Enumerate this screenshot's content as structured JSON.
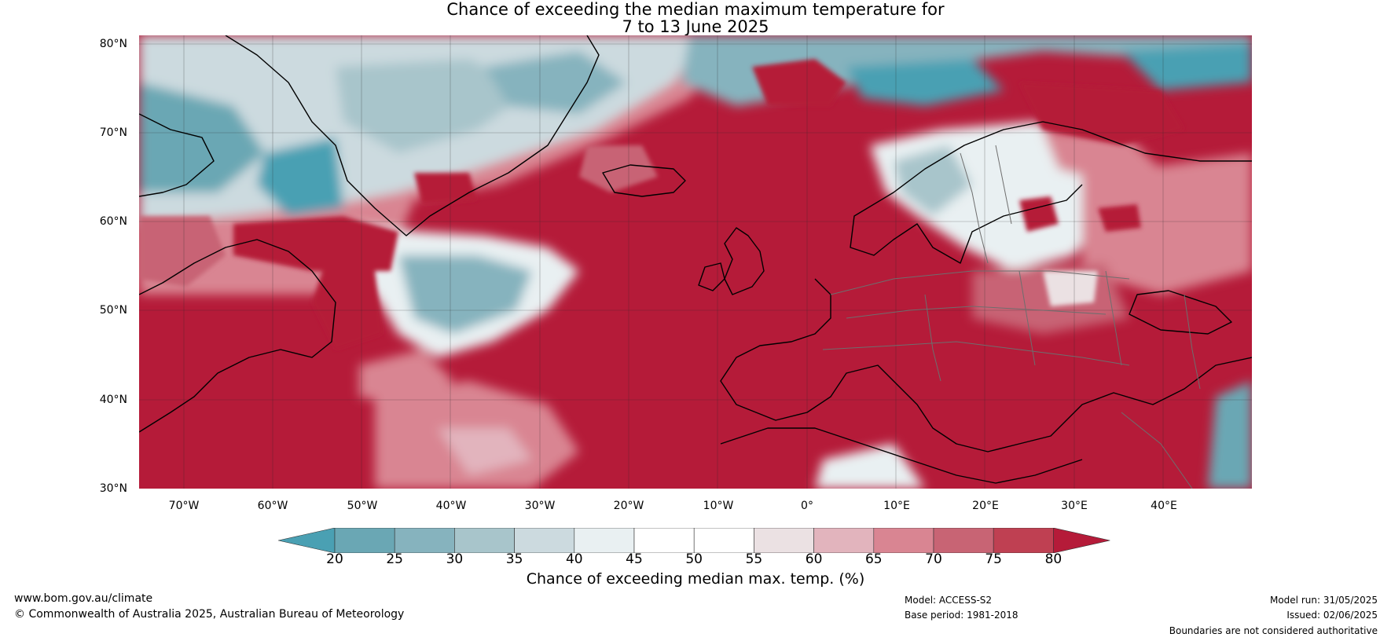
{
  "title": {
    "line1": "Chance of exceeding the median maximum temperature for",
    "line2": "7 to 13 June 2025"
  },
  "map": {
    "latitude_labels": [
      "80°N",
      "70°N",
      "60°N",
      "50°N",
      "40°N",
      "30°N"
    ],
    "longitude_labels": [
      "70°W",
      "60°W",
      "50°W",
      "40°W",
      "30°W",
      "20°W",
      "10°W",
      "0°",
      "10°E",
      "20°E",
      "30°E",
      "40°E"
    ],
    "extent": {
      "lon": [
        -75,
        50
      ],
      "lat": [
        30,
        81
      ]
    }
  },
  "colorbar": {
    "ticks": [
      "20",
      "25",
      "30",
      "35",
      "40",
      "45",
      "50",
      "55",
      "60",
      "65",
      "70",
      "75",
      "80"
    ],
    "colors": [
      "#4aa0b3",
      "#6aa7b4",
      "#86b3be",
      "#a8c5cb",
      "#ccdadf",
      "#e9f0f2",
      "#ffffff",
      "#ffffff",
      "#ebe1e3",
      "#e2b4bd",
      "#d98592",
      "#c86474",
      "#bf4052",
      "#b51b39"
    ],
    "label": "Chance of exceeding median max. temp. (%)"
  },
  "footer": {
    "url": "www.bom.gov.au/climate",
    "copyright": "© Commonwealth of Australia 2025, Australian Bureau of Meteorology",
    "model": "Model: ACCESS-S2",
    "base_period": "Base period: 1981-2018",
    "model_run": "Model run: 31/05/2025",
    "issued": "Issued: 02/06/2025",
    "disclaimer": "Boundaries are not considered authoritative"
  }
}
